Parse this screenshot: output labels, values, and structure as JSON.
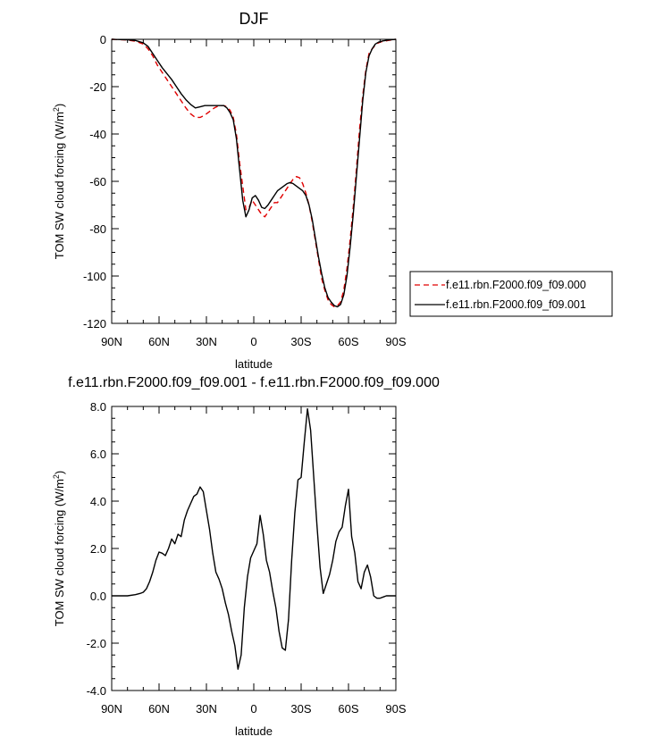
{
  "chart_data": [
    {
      "type": "line",
      "title": "DJF",
      "xlabel": "latitude",
      "ylabel_prefix": "TOM SW cloud forcing (W/m",
      "ylabel_sup": "2",
      "ylabel_suffix": ")",
      "xlim": [
        90,
        -90
      ],
      "ylim": [
        -120,
        0
      ],
      "x_tick_values": [
        90,
        60,
        30,
        0,
        -30,
        -60,
        -90
      ],
      "x_tick_labels": [
        "90N",
        "60N",
        "30N",
        "0",
        "30S",
        "60S",
        "90S"
      ],
      "y_tick_values": [
        0,
        -20,
        -40,
        -60,
        -80,
        -100,
        -120
      ],
      "y_tick_labels": [
        "0",
        "-20",
        "-40",
        "-60",
        "-80",
        "-100",
        "-120"
      ],
      "grid": false,
      "legend": "right",
      "series": [
        {
          "name": "f.e11.rbn.F2000.f09_f09.000",
          "color": "#e00000",
          "dash": "dashed",
          "x": [
            90,
            80,
            75,
            70,
            67,
            64,
            61,
            58,
            55,
            52,
            49,
            46,
            43,
            40,
            37,
            34,
            31,
            28,
            25,
            22,
            19,
            17,
            15,
            13,
            11,
            9,
            7,
            5,
            3,
            1,
            -1,
            -3,
            -5,
            -7,
            -9,
            -11,
            -13,
            -15,
            -17,
            -19,
            -21,
            -23,
            -25,
            -27,
            -29,
            -31,
            -33,
            -35,
            -37,
            -39,
            -41,
            -43,
            -45,
            -47,
            -49,
            -51,
            -53,
            -55,
            -57,
            -59,
            -61,
            -63,
            -65,
            -67,
            -69,
            -71,
            -73,
            -75,
            -77,
            -79,
            -81,
            -85,
            -90
          ],
          "values": [
            0,
            -0.3,
            -0.8,
            -2,
            -4,
            -7,
            -11,
            -14,
            -17,
            -20,
            -23,
            -26,
            -29,
            -31.5,
            -33,
            -33,
            -32,
            -30.5,
            -29,
            -28,
            -28,
            -28.5,
            -30,
            -33,
            -40,
            -52,
            -62,
            -72,
            -71,
            -68,
            -70,
            -72,
            -74,
            -75,
            -73,
            -71,
            -69,
            -69,
            -67,
            -65,
            -63,
            -61,
            -59,
            -58,
            -58.5,
            -61,
            -65,
            -70,
            -77,
            -85,
            -93,
            -101,
            -106,
            -110,
            -112,
            -113,
            -112.5,
            -111,
            -106,
            -97,
            -85,
            -71,
            -55,
            -38,
            -24,
            -13,
            -6,
            -4,
            -2.5,
            -1.5,
            -1,
            -0.5,
            0
          ]
        },
        {
          "name": "f.e11.rbn.F2000.f09_f09.001",
          "color": "#000000",
          "dash": "solid",
          "x": [
            90,
            80,
            75,
            70,
            67,
            64,
            61,
            58,
            55,
            52,
            49,
            46,
            43,
            40,
            37,
            34,
            31,
            28,
            25,
            22,
            19,
            17,
            15,
            13,
            11,
            9,
            7,
            5,
            3,
            1,
            -1,
            -3,
            -5,
            -7,
            -9,
            -11,
            -13,
            -15,
            -17,
            -19,
            -21,
            -23,
            -25,
            -27,
            -29,
            -31,
            -33,
            -35,
            -37,
            -39,
            -41,
            -43,
            -45,
            -47,
            -49,
            -51,
            -53,
            -55,
            -57,
            -59,
            -61,
            -63,
            -65,
            -67,
            -69,
            -71,
            -73,
            -75,
            -77,
            -79,
            -81,
            -85,
            -90
          ],
          "values": [
            0,
            -0.2,
            -0.5,
            -1.5,
            -3,
            -6,
            -9,
            -12,
            -14.5,
            -17,
            -20,
            -23,
            -25.5,
            -27.5,
            -29,
            -28.5,
            -28,
            -28,
            -28,
            -28,
            -28,
            -29,
            -31,
            -34,
            -42,
            -55,
            -68,
            -75,
            -72,
            -67,
            -66,
            -68,
            -71,
            -71.5,
            -70,
            -68,
            -66,
            -64,
            -63,
            -62,
            -61,
            -60.5,
            -61,
            -62,
            -63,
            -64,
            -66,
            -70,
            -76,
            -84,
            -92,
            -99,
            -105,
            -109,
            -111,
            -112.5,
            -113,
            -112,
            -108,
            -100,
            -88,
            -74,
            -58,
            -42,
            -26,
            -14,
            -7,
            -4,
            -2,
            -1.2,
            -0.8,
            -0.3,
            0
          ]
        }
      ]
    },
    {
      "type": "line",
      "title": "f.e11.rbn.F2000.f09_f09.001 - f.e11.rbn.F2000.f09_f09.000",
      "xlabel": "latitude",
      "ylabel_prefix": "TOM SW cloud forcing (W/m",
      "ylabel_sup": "2",
      "ylabel_suffix": ")",
      "xlim": [
        90,
        -90
      ],
      "ylim": [
        -4,
        8
      ],
      "x_tick_values": [
        90,
        60,
        30,
        0,
        -30,
        -60,
        -90
      ],
      "x_tick_labels": [
        "90N",
        "60N",
        "30N",
        "0",
        "30S",
        "60S",
        "90S"
      ],
      "y_tick_values": [
        8,
        6,
        4,
        2,
        0,
        -2,
        -4
      ],
      "y_tick_labels": [
        "8.0",
        "6.0",
        "4.0",
        "2.0",
        "0.0",
        "-2.0",
        "-4.0"
      ],
      "grid": false,
      "series": [
        {
          "color": "#000000",
          "dash": "solid",
          "x": [
            90,
            80,
            75,
            72,
            70,
            68,
            66,
            64,
            62,
            60,
            58,
            56,
            54,
            52,
            50,
            48,
            46,
            44,
            42,
            40,
            38,
            36,
            34,
            32,
            30,
            28,
            26,
            24,
            22,
            20,
            18,
            16,
            14,
            12,
            10,
            8,
            6,
            4,
            2,
            0,
            -2,
            -4,
            -6,
            -8,
            -10,
            -12,
            -14,
            -16,
            -18,
            -20,
            -22,
            -24,
            -26,
            -28,
            -30,
            -32,
            -34,
            -36,
            -38,
            -40,
            -42,
            -44,
            -46,
            -48,
            -50,
            -52,
            -54,
            -56,
            -58,
            -60,
            -62,
            -64,
            -66,
            -68,
            -70,
            -72,
            -74,
            -76,
            -78,
            -80,
            -82,
            -84,
            -86,
            -88,
            -90
          ],
          "values": [
            0,
            0,
            0.05,
            0.1,
            0.15,
            0.3,
            0.6,
            1.0,
            1.5,
            1.85,
            1.8,
            1.7,
            2.0,
            2.4,
            2.2,
            2.6,
            2.5,
            3.2,
            3.6,
            3.9,
            4.2,
            4.3,
            4.6,
            4.4,
            3.6,
            2.8,
            1.8,
            1.0,
            0.7,
            0.3,
            -0.3,
            -0.8,
            -1.5,
            -2.1,
            -3.1,
            -2.5,
            -0.5,
            0.8,
            1.6,
            1.9,
            2.2,
            3.4,
            2.6,
            1.5,
            1.0,
            0.2,
            -0.5,
            -1.5,
            -2.2,
            -2.3,
            -1.0,
            1.5,
            3.5,
            4.9,
            5.0,
            6.5,
            7.9,
            7.0,
            5.0,
            3.0,
            1.2,
            0.1,
            0.5,
            0.9,
            1.5,
            2.3,
            2.7,
            2.9,
            3.8,
            4.5,
            2.5,
            1.8,
            0.6,
            0.3,
            1.0,
            1.3,
            0.8,
            0.0,
            -0.1,
            -0.1,
            -0.05,
            0,
            0,
            0,
            0
          ]
        }
      ]
    }
  ]
}
